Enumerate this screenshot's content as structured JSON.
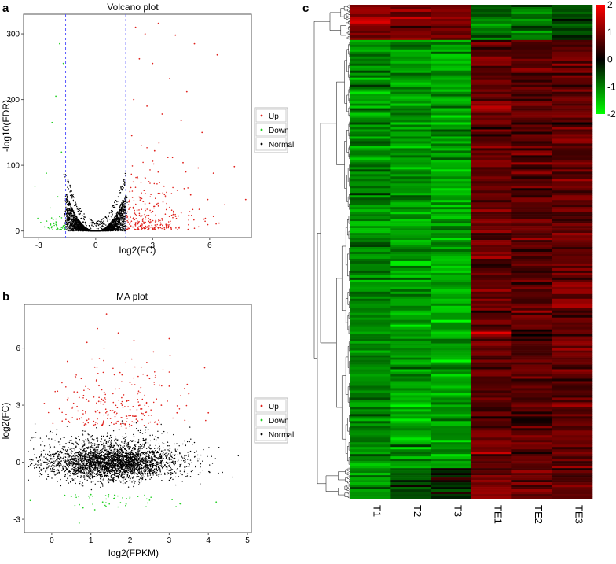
{
  "panels": {
    "a": {
      "letter": "a"
    },
    "b": {
      "letter": "b"
    },
    "c": {
      "letter": "c"
    }
  },
  "colors": {
    "up": "#e0201b",
    "down": "#22d022",
    "normal": "#000000",
    "threshold_line": "#5a5aff",
    "heat_low": "#00ff00",
    "heat_mid": "#000000",
    "heat_high": "#ff0000"
  },
  "chart_data": [
    {
      "type": "scatter",
      "title": "Volcano plot",
      "xlabel": "log2(FC)",
      "ylabel": "-log10(FDR)",
      "xlim": [
        -3.8,
        8.2
      ],
      "ylim": [
        -10,
        330
      ],
      "xticks": [
        -3,
        0,
        3,
        6
      ],
      "yticks": [
        0,
        100,
        200,
        300
      ],
      "thresholds": {
        "x": [
          -1.585,
          1.585
        ],
        "y": 1.3
      },
      "legend": [
        "Up",
        "Down",
        "Normal"
      ],
      "legend_position": "right",
      "series": [
        {
          "name": "Up",
          "points": [
            [
              2.1,
              310
            ],
            [
              2.6,
              300
            ],
            [
              3.3,
              316
            ],
            [
              4.2,
              298
            ],
            [
              5.2,
              285
            ],
            [
              2.3,
              262
            ],
            [
              3.0,
              255
            ],
            [
              3.9,
              232
            ],
            [
              4.8,
              212
            ],
            [
              6.4,
              268
            ],
            [
              2.0,
              200
            ],
            [
              2.7,
              190
            ],
            [
              3.5,
              178
            ],
            [
              4.5,
              168
            ],
            [
              5.6,
              150
            ],
            [
              1.9,
              145
            ],
            [
              2.4,
              130
            ],
            [
              3.1,
              122
            ],
            [
              3.8,
              112
            ],
            [
              4.6,
              104
            ],
            [
              5.4,
              96
            ],
            [
              6.2,
              88
            ],
            [
              7.3,
              98
            ],
            [
              2.2,
              82
            ],
            [
              2.8,
              75
            ],
            [
              3.6,
              68
            ],
            [
              4.3,
              62
            ],
            [
              5.0,
              55
            ],
            [
              5.9,
              48
            ],
            [
              6.8,
              40
            ],
            [
              1.8,
              60
            ],
            [
              2.5,
              45
            ],
            [
              3.3,
              38
            ],
            [
              4.1,
              30
            ],
            [
              4.9,
              24
            ],
            [
              5.7,
              18
            ],
            [
              6.5,
              12
            ],
            [
              2.0,
              20
            ],
            [
              2.9,
              14
            ],
            [
              3.7,
              10
            ],
            [
              4.4,
              6
            ],
            [
              7.9,
              48
            ]
          ]
        },
        {
          "name": "Down",
          "points": [
            [
              -1.9,
              285
            ],
            [
              -1.7,
              255
            ],
            [
              -2.1,
              205
            ],
            [
              -2.3,
              165
            ],
            [
              -1.8,
              120
            ],
            [
              -2.6,
              88
            ],
            [
              -3.2,
              68
            ],
            [
              -2.0,
              52
            ],
            [
              -2.4,
              35
            ],
            [
              -1.9,
              22
            ],
            [
              -2.2,
              12
            ],
            [
              -1.7,
              8
            ],
            [
              -2.5,
              5
            ]
          ]
        },
        {
          "name": "Normal",
          "description": "dense V-shaped cloud of non-significant genes with |log2FC| < 1.585, FDR rising with |log2FC|"
        }
      ]
    },
    {
      "type": "scatter",
      "title": "MA plot",
      "xlabel": "log2(FPKM)",
      "ylabel": "log2(FC)",
      "xlim": [
        -0.7,
        5.1
      ],
      "ylim": [
        -3.7,
        8.3
      ],
      "xticks": [
        0,
        1,
        2,
        3,
        4,
        5
      ],
      "yticks": [
        -3,
        0,
        3,
        6
      ],
      "legend": [
        "Up",
        "Down",
        "Normal"
      ],
      "legend_position": "right",
      "series": [
        {
          "name": "Up",
          "points": [
            [
              0.4,
              5.3
            ],
            [
              0.9,
              6.3
            ],
            [
              1.4,
              7.8
            ],
            [
              1.7,
              6.8
            ],
            [
              2.1,
              6.4
            ],
            [
              2.6,
              5.8
            ],
            [
              3.0,
              6.5
            ],
            [
              0.6,
              4.5
            ],
            [
              1.1,
              5.0
            ],
            [
              1.6,
              4.6
            ],
            [
              2.0,
              4.2
            ],
            [
              2.5,
              4.4
            ],
            [
              3.0,
              4.0
            ],
            [
              3.5,
              3.6
            ],
            [
              0.7,
              3.4
            ],
            [
              1.2,
              3.2
            ],
            [
              1.8,
              3.0
            ],
            [
              2.3,
              2.8
            ],
            [
              2.8,
              3.0
            ],
            [
              3.2,
              2.6
            ],
            [
              0.9,
              2.2
            ],
            [
              1.5,
              2.3
            ],
            [
              2.1,
              2.1
            ],
            [
              2.7,
              2.0
            ],
            [
              3.4,
              2.2
            ],
            [
              4.0,
              2.6
            ],
            [
              1.3,
              2.0
            ],
            [
              1.9,
              1.8
            ]
          ]
        },
        {
          "name": "Down",
          "points": [
            [
              0.5,
              -1.8
            ],
            [
              0.8,
              -2.4
            ],
            [
              1.0,
              -1.7
            ],
            [
              1.3,
              -2.1
            ],
            [
              1.6,
              -1.9
            ],
            [
              1.9,
              -2.2
            ],
            [
              2.2,
              -1.8
            ],
            [
              0.7,
              -3.2
            ],
            [
              2.5,
              -2.0
            ],
            [
              3.3,
              -2.2
            ],
            [
              4.2,
              -2.1
            ],
            [
              1.1,
              -2.5
            ]
          ]
        },
        {
          "name": "Normal",
          "description": "dense cloud centred near log2(FPKM)=1.5, log2(FC)=0, spread roughly -1.5 to 1.5"
        }
      ]
    },
    {
      "type": "heatmap",
      "columns": [
        "T1",
        "T2",
        "T3",
        "TE1",
        "TE2",
        "TE3"
      ],
      "colorbar": {
        "min": -2,
        "max": 2,
        "ticks": [
          2,
          1,
          0,
          -1,
          -2
        ]
      },
      "row_clusters": [
        {
          "name": "upper",
          "rows_fraction": 0.07,
          "pattern": "T high (red), TE low (green)"
        },
        {
          "name": "main",
          "rows_fraction": 0.87,
          "pattern": "T low (green), TE high (red)"
        },
        {
          "name": "bottom",
          "rows_fraction": 0.06,
          "pattern": "mixed, T3 dark, TE red"
        }
      ],
      "dendrogram": "rows"
    }
  ]
}
